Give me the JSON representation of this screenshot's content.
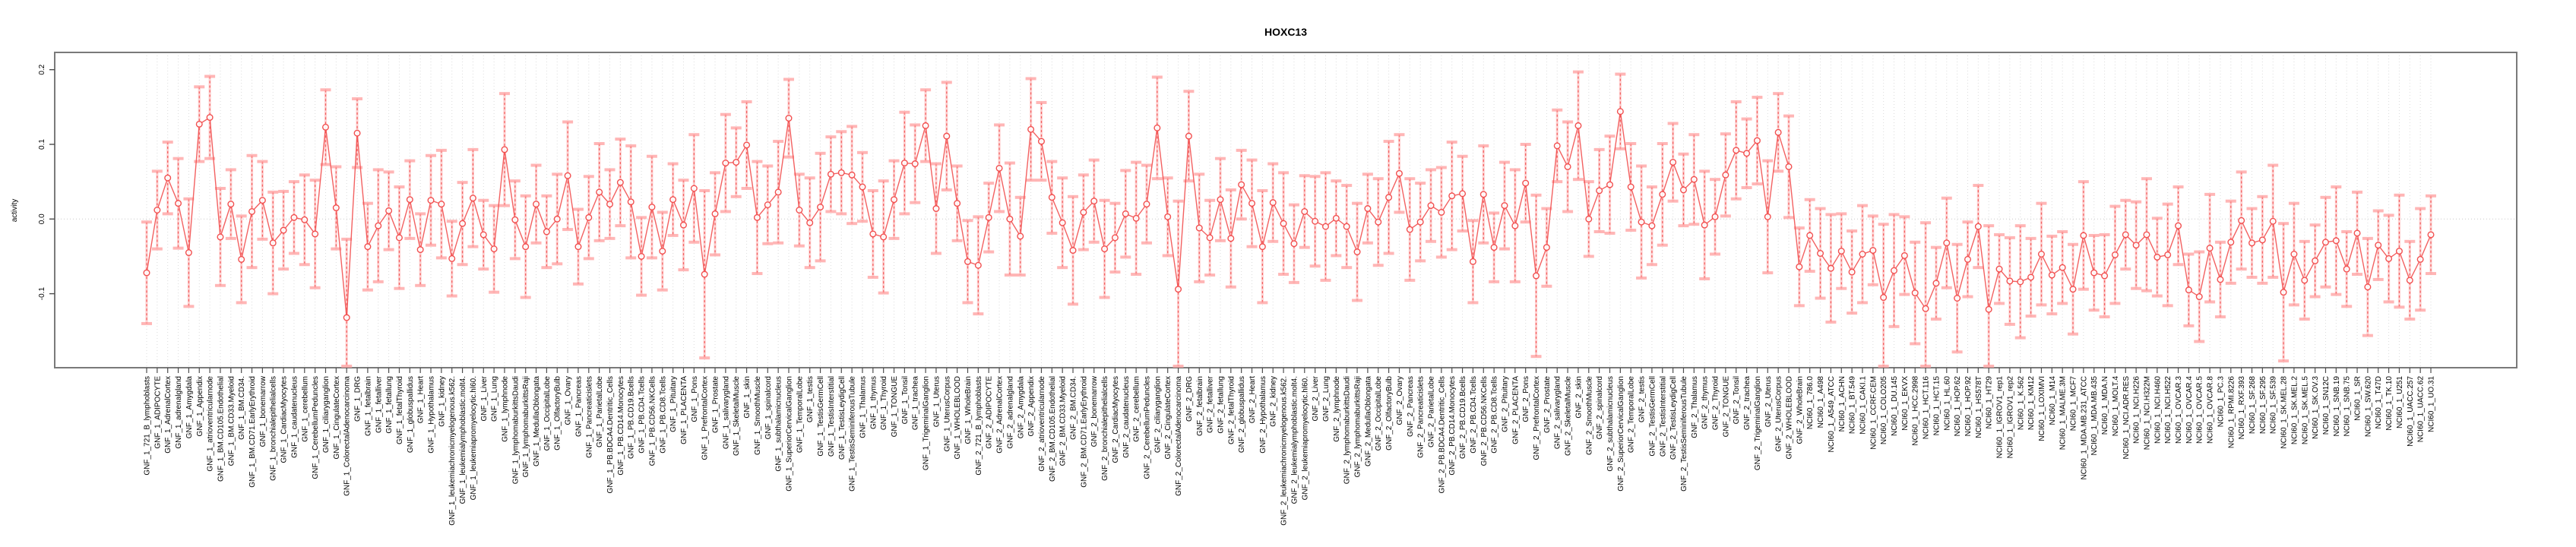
{
  "figure": {
    "title": "HOXC13"
  },
  "chart_data": {
    "type": "line",
    "subtype": "points-with-error-bars",
    "title": "HOXC13",
    "xlabel": "",
    "ylabel": "activity",
    "ylim": [
      -0.2,
      0.22
    ],
    "ytick_labels": [
      "-0.1",
      "0.0",
      "0.1",
      "0.2"
    ],
    "legend": "none",
    "grid": "dotted vertical line at every category; dotted horizontal line at y=0",
    "point_style": "open-circle",
    "error_style": "dashed vertical stem with horizontal caps",
    "colors": {
      "series": "#f25050",
      "error_fill": "#ff9e9e",
      "gridline": "#dcdcdc",
      "zero_line": "#c8c8c8",
      "frame": "#7a7a7a",
      "tick": "#4d4d4d",
      "text": "#000000"
    },
    "categories": [
      "GNF_1_721_B_lymphoblasts",
      "GNF_1_ADIPOCYTE",
      "GNF_1_AdrenalCortex",
      "GNF_1_adrenalgland",
      "GNF_1_Amygdala",
      "GNF_1_Appendix",
      "GNF_1_atrioventricularnode",
      "GNF_1_BM.CD105.Endothelial",
      "GNF_1_BM.CD33.Myeloid",
      "GNF_1_BM.CD34.",
      "GNF_1_BM.CD71.EarlyErythroid",
      "GNF_1_bonemarrow",
      "GNF_1_bronchialepithelialcells",
      "GNF_1_CardiacMyocytes",
      "GNF_1_caudatenucleus",
      "GNF_1_cerebellum",
      "GNF_1_CerebellumPeduncles",
      "GNF_1_ciliaryganglion",
      "GNF_1_CingulateCortex",
      "GNF_1_ColorectalAdenocarcinoma",
      "GNF_1_DRG",
      "GNF_1_fetalbrain",
      "GNF_1_fetalliver",
      "GNF_1_fetallung",
      "GNF_1_fetalThyroid",
      "GNF_1_globuspallidus",
      "GNF_1_Heart",
      "GNF_1_Hypothalamus",
      "GNF_1_kidney",
      "GNF_1_leukemiachronicmyelogenous.k562.",
      "GNF_1_leukemialymphoblastic.molt4.",
      "GNF_1_leukemiapromyelocytic.hl60.",
      "GNF_1_Liver",
      "GNF_1_Lung",
      "GNF_1_lymphnode",
      "GNF_1_lymphomaburkittsDaudi",
      "GNF_1_lymphomaburkittsRaji",
      "GNF_1_MedullaOblongata",
      "GNF_1_OccipitalLobe",
      "GNF_1_OlfactoryBulb",
      "GNF_1_Ovary",
      "GNF_1_Pancreas",
      "GNF_1_Pancreaticislets",
      "GNF_1_ParietalLobe",
      "GNF_1_PB.BDCA4.Dentritic_Cells",
      "GNF_1_PB.CD14.Monocytes",
      "GNF_1_PB.CD19.Bcells",
      "GNF_1_PB.CD4.Tcells",
      "GNF_1_PB.CD56.NKCells",
      "GNF_1_PB.CD8.Tcells",
      "GNF_1_Pituitary",
      "GNF_1_PLACENTA",
      "GNF_1_Pons",
      "GNF_1_PrefrontalCortex",
      "GNF_1_Prostate",
      "GNF_1_salivarygland",
      "GNF_1_SkeletalMuscle",
      "GNF_1_skin",
      "GNF_1_SmoothMuscle",
      "GNF_1_spinalcord",
      "GNF_1_subthalamicnucleus",
      "GNF_1_SuperiorCervicalGanglion",
      "GNF_1_TemporalLobe",
      "GNF_1_testis",
      "GNF_1_TestisGermCell",
      "GNF_1_TestisInterstitial",
      "GNF_1_TestisLeydigCell",
      "GNF_1_TestisSeminiferousTubule",
      "GNF_1_Thalamus",
      "GNF_1_thymus",
      "GNF_1_Thyroid",
      "GNF_1_TONGUE",
      "GNF_1_Tonsil",
      "GNF_1_trachea",
      "GNF_1_TrigeminalGanglion",
      "GNF_1_Uterus",
      "GNF_1_UterusCorpus",
      "GNF_1_WHOLEBLOOD",
      "GNF_1_WholeBrain",
      "GNF_2_721_B_lymphoblasts",
      "GNF_2_ADIPOCYTE",
      "GNF_2_AdrenalCortex",
      "GNF_2_adrenalgland",
      "GNF_2_Amygdala",
      "GNF_2_Appendix",
      "GNF_2_atrioventricularnode",
      "GNF_2_BM.CD105.Endothelial",
      "GNF_2_BM.CD33.Myeloid",
      "GNF_2_BM.CD34.",
      "GNF_2_BM.CD71.EarlyErythroid",
      "GNF_2_bonemarrow",
      "GNF_2_bronchialepithelialcells",
      "GNF_2_CardiacMyocytes",
      "GNF_2_caudatenucleus",
      "GNF_2_cerebellum",
      "GNF_2_CerebellumPeduncles",
      "GNF_2_ciliaryganglion",
      "GNF_2_CingulateCortex",
      "GNF_2_ColorectalAdenocarcinoma",
      "GNF_2_DRG",
      "GNF_2_fetalbrain",
      "GNF_2_fetalliver",
      "GNF_2_fetallung",
      "GNF_2_fetalThyroid",
      "GNF_2_globuspallidus",
      "GNF_2_Heart",
      "GNF_2_Hypothalamus",
      "GNF_2_kidney",
      "GNF_2_leukemiachronicmyelogenous.k562.",
      "GNF_2_leukemialymphoblastic.molt4.",
      "GNF_2_leukemiapromyelocytic.hl60.",
      "GNF_2_Liver",
      "GNF_2_Lung",
      "GNF_2_lymphnode",
      "GNF_2_lymphomaburkittsDaudi",
      "GNF_2_lymphomaburkittsRaji",
      "GNF_2_MedullaOblongata",
      "GNF_2_OccipitalLobe",
      "GNF_2_OlfactoryBulb",
      "GNF_2_Ovary",
      "GNF_2_Pancreas",
      "GNF_2_Pancreaticislets",
      "GNF_2_ParietalLobe",
      "GNF_2_PB.BDCA4.Dentritic_Cells",
      "GNF_2_PB.CD14.Monocytes",
      "GNF_2_PB.CD19.Bcells",
      "GNF_2_PB.CD4.Tcells",
      "GNF_2_PB.CD56.NKCells",
      "GNF_2_PB.CD8.Tcells",
      "GNF_2_Pituitary",
      "GNF_2_PLACENTA",
      "GNF_2_Pons",
      "GNF_2_PrefrontalCortex",
      "GNF_2_Prostate",
      "GNF_2_salivarygland",
      "GNF_2_SkeletalMuscle",
      "GNF_2_skin",
      "GNF_2_SmoothMuscle",
      "GNF_2_spinalcord",
      "GNF_2_subthalamicnucleus",
      "GNF_2_SuperiorCervicalGanglion",
      "GNF_2_TemporalLobe",
      "GNF_2_testis",
      "GNF_2_TestisGermCell",
      "GNF_2_TestisInterstitial",
      "GNF_2_TestisLeydigCell",
      "GNF_2_TestisSeminiferousTubule",
      "GNF_2_Thalamus",
      "GNF_2_thymus",
      "GNF_2_Thyroid",
      "GNF_2_TONGUE",
      "GNF_2_Tonsil",
      "GNF_2_trachea",
      "GNF_2_TrigeminalGanglion",
      "GNF_2_Uterus",
      "GNF_2_UterusCorpus",
      "GNF_2_WHOLEBLOOD",
      "GNF_2_WholeBrain",
      "NCI60_1_786.0",
      "NCI60_1_A498",
      "NCI60_1_A549_ATCC",
      "NCI60_1_ACHN",
      "NCI60_1_BT.549",
      "NCI60_1_CAKI.1",
      "NCI60_1_CCRF.CEM",
      "NCI60_1_COLO205",
      "NCI60_1_DU.145",
      "NCI60_1_EKVX",
      "NCI60_1_HCC.2998",
      "NCI60_1_HCT.116",
      "NCI60_1_HCT.15",
      "NCI60_1_HL.60",
      "NCI60_1_HOP.62",
      "NCI60_1_HOP.92",
      "NCI60_1_HS578T",
      "NCI60_1_HT29",
      "NCI60_1_IGROV1_rep1",
      "NCI60_1_IGROV1_rep2",
      "NCI60_1_K.562",
      "NCI60_1_KM12",
      "NCI60_1_LOXIMVI",
      "NCI60_1_M14",
      "NCI60_1_MALME.3M",
      "NCI60_1_MCF7",
      "NCI60_1_MDA.MB.231_ATCC",
      "NCI60_1_MDA.MB.435",
      "NCI60_1_MDA.N",
      "NCI60_1_MOLT.4",
      "NCI60_1_NCI.ADR.RES",
      "NCI60_1_NCI.H226",
      "NCI60_1_NCI.H322M",
      "NCI60_1_NCI.H460",
      "NCI60_1_NCI.H522",
      "NCI60_1_OVCAR.3",
      "NCI60_1_OVCAR.4",
      "NCI60_1_OVCAR.5",
      "NCI60_1_OVCAR.8",
      "NCI60_1_PC.3",
      "NCI60_1_RPMI.8226",
      "NCI60_1_RXF.393",
      "NCI60_1_SF.268",
      "NCI60_1_SF.295",
      "NCI60_1_SF.539",
      "NCI60_1_SK.MEL.28",
      "NCI60_1_SK.MEL.2",
      "NCI60_1_SK.MEL.5",
      "NCI60_1_SK.OV.3",
      "NCI60_1_SN12C",
      "NCI60_1_SNB.19",
      "NCI60_1_SNB.75",
      "NCI60_1_SR",
      "NCI60_1_SW.620",
      "NCI60_1_T47D",
      "NCI60_1_TK.10",
      "NCI60_1_U251",
      "NCI60_1_UACC.257",
      "NCI60_1_UACC.62",
      "NCI60_1_UO.31"
    ],
    "values": [
      -0.072,
      0.012,
      0.055,
      0.021,
      -0.045,
      0.127,
      0.136,
      -0.024,
      0.02,
      -0.054,
      0.01,
      0.025,
      -0.032,
      -0.015,
      0.002,
      -0.001,
      -0.02,
      0.123,
      0.015,
      -0.132,
      0.115,
      -0.037,
      -0.009,
      0.011,
      -0.025,
      0.026,
      -0.041,
      0.025,
      0.02,
      -0.053,
      -0.006,
      0.028,
      -0.021,
      -0.04,
      0.093,
      -0.001,
      -0.037,
      0.02,
      -0.017,
      0.0,
      0.058,
      -0.037,
      0.002,
      0.036,
      0.02,
      0.049,
      0.023,
      -0.05,
      0.016,
      -0.043,
      0.026,
      -0.008,
      0.041,
      -0.074,
      0.007,
      0.075,
      0.076,
      0.099,
      0.002,
      0.019,
      0.036,
      0.135,
      0.012,
      -0.005,
      0.016,
      0.06,
      0.062,
      0.059,
      0.043,
      -0.02,
      -0.024,
      0.026,
      0.075,
      0.074,
      0.125,
      0.014,
      0.111,
      0.021,
      -0.057,
      -0.062,
      0.002,
      0.068,
      0.0,
      -0.023,
      0.12,
      0.104,
      0.029,
      -0.005,
      -0.042,
      0.009,
      0.024,
      -0.04,
      -0.025,
      0.007,
      0.001,
      0.02,
      0.122,
      0.003,
      -0.094,
      0.111,
      -0.012,
      -0.025,
      0.026,
      -0.026,
      0.046,
      0.021,
      -0.037,
      0.022,
      -0.006,
      -0.033,
      0.01,
      -0.003,
      -0.01,
      0.001,
      -0.01,
      -0.044,
      0.014,
      -0.004,
      0.029,
      0.061,
      -0.014,
      -0.004,
      0.018,
      0.009,
      0.031,
      0.034,
      -0.057,
      0.033,
      -0.038,
      0.018,
      -0.009,
      0.048,
      -0.076,
      -0.038,
      0.098,
      0.07,
      0.125,
      0.0,
      0.038,
      0.046,
      0.144,
      0.043,
      -0.004,
      -0.009,
      0.033,
      0.076,
      0.039,
      0.053,
      -0.008,
      0.003,
      0.059,
      0.092,
      0.088,
      0.105,
      0.003,
      0.116,
      0.07,
      -0.064,
      -0.022,
      -0.046,
      -0.066,
      -0.043,
      -0.071,
      -0.047,
      -0.042,
      -0.105,
      -0.069,
      -0.049,
      -0.099,
      -0.12,
      -0.086,
      -0.032,
      -0.106,
      -0.054,
      -0.01,
      -0.121,
      -0.067,
      -0.083,
      -0.084,
      -0.078,
      -0.047,
      -0.075,
      -0.065,
      -0.094,
      -0.022,
      -0.072,
      -0.076,
      -0.048,
      -0.021,
      -0.035,
      -0.021,
      -0.051,
      -0.048,
      -0.009,
      -0.095,
      -0.104,
      -0.039,
      -0.081,
      -0.031,
      -0.002,
      -0.032,
      -0.028,
      -0.003,
      -0.098,
      -0.047,
      -0.082,
      -0.056,
      -0.031,
      -0.029,
      -0.067,
      -0.019,
      -0.091,
      -0.035,
      -0.053,
      -0.043,
      -0.082,
      -0.054,
      -0.021
    ],
    "errors": [
      0.068,
      0.052,
      0.048,
      0.06,
      0.072,
      0.05,
      0.055,
      0.065,
      0.046,
      0.058,
      0.075,
      0.052,
      0.068,
      0.052,
      0.048,
      0.06,
      0.072,
      0.05,
      0.055,
      0.105,
      0.046,
      0.058,
      0.075,
      0.052,
      0.068,
      0.052,
      0.048,
      0.06,
      0.072,
      0.05,
      0.055,
      0.065,
      0.046,
      0.058,
      0.075,
      0.052,
      0.068,
      0.052,
      0.048,
      0.06,
      0.072,
      0.05,
      0.055,
      0.065,
      0.046,
      0.058,
      0.075,
      0.052,
      0.068,
      0.052,
      0.048,
      0.06,
      0.072,
      0.112,
      0.055,
      0.065,
      0.046,
      0.058,
      0.075,
      0.052,
      0.068,
      0.052,
      0.048,
      0.06,
      0.072,
      0.05,
      0.055,
      0.065,
      0.046,
      0.058,
      0.075,
      0.052,
      0.068,
      0.052,
      0.048,
      0.06,
      0.072,
      0.05,
      0.055,
      0.065,
      0.046,
      0.058,
      0.075,
      0.052,
      0.068,
      0.052,
      0.048,
      0.06,
      0.072,
      0.05,
      0.055,
      0.065,
      0.046,
      0.058,
      0.075,
      0.052,
      0.068,
      0.052,
      0.118,
      0.06,
      0.072,
      0.05,
      0.055,
      0.065,
      0.046,
      0.058,
      0.075,
      0.052,
      0.068,
      0.052,
      0.048,
      0.06,
      0.072,
      0.05,
      0.055,
      0.065,
      0.046,
      0.058,
      0.075,
      0.052,
      0.068,
      0.052,
      0.048,
      0.06,
      0.072,
      0.05,
      0.055,
      0.065,
      0.046,
      0.058,
      0.075,
      0.052,
      0.108,
      0.052,
      0.048,
      0.06,
      0.072,
      0.05,
      0.055,
      0.065,
      0.05,
      0.058,
      0.075,
      0.052,
      0.068,
      0.052,
      0.048,
      0.06,
      0.072,
      0.05,
      0.055,
      0.065,
      0.046,
      0.058,
      0.075,
      0.052,
      0.068,
      0.052,
      0.048,
      0.06,
      0.072,
      0.05,
      0.055,
      0.065,
      0.046,
      0.098,
      0.075,
      0.052,
      0.068,
      0.115,
      0.048,
      0.06,
      0.072,
      0.05,
      0.055,
      0.112,
      0.046,
      0.058,
      0.075,
      0.052,
      0.068,
      0.052,
      0.048,
      0.06,
      0.072,
      0.05,
      0.055,
      0.065,
      0.046,
      0.058,
      0.075,
      0.052,
      0.068,
      0.052,
      0.048,
      0.06,
      0.072,
      0.05,
      0.055,
      0.065,
      0.046,
      0.058,
      0.075,
      0.092,
      0.068,
      0.052,
      0.048,
      0.06,
      0.072,
      0.05,
      0.055,
      0.065,
      0.046,
      0.058,
      0.075,
      0.052,
      0.068,
      0.052
    ]
  }
}
